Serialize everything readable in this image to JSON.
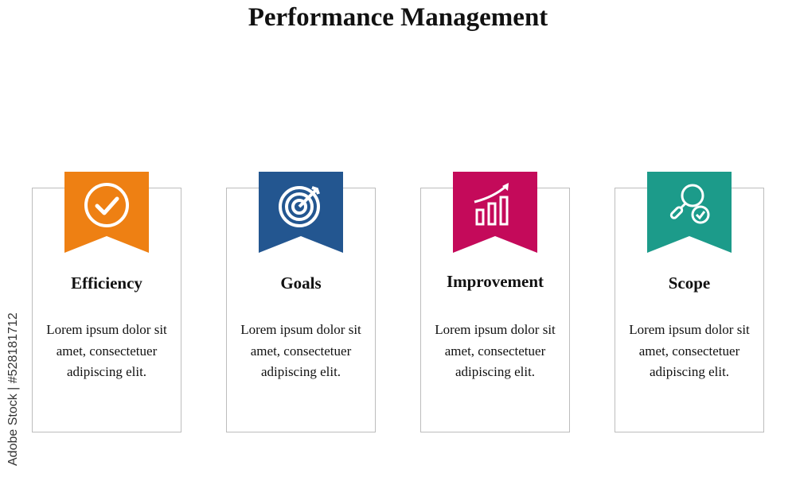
{
  "title": "Performance Management",
  "watermark": "Adobe Stock | #528181712",
  "cards": [
    {
      "heading": "Efficiency",
      "text": "Lorem ipsum dolor sit amet, consectetuer adipiscing elit.",
      "color": "#EE8013",
      "icon": "check-circle-icon"
    },
    {
      "heading": "Goals",
      "text": "Lorem ipsum dolor sit amet, consectetuer adipiscing elit.",
      "color": "#235690",
      "icon": "target-icon"
    },
    {
      "heading": "Improvement",
      "text": "Lorem ipsum dolor sit amet, consectetuer adipiscing elit.",
      "color": "#C40A5A",
      "icon": "growth-chart-icon"
    },
    {
      "heading": "Scope",
      "text": "Lorem ipsum dolor sit amet, consectetuer adipiscing elit.",
      "color": "#1C9B8A",
      "icon": "search-check-icon"
    }
  ]
}
